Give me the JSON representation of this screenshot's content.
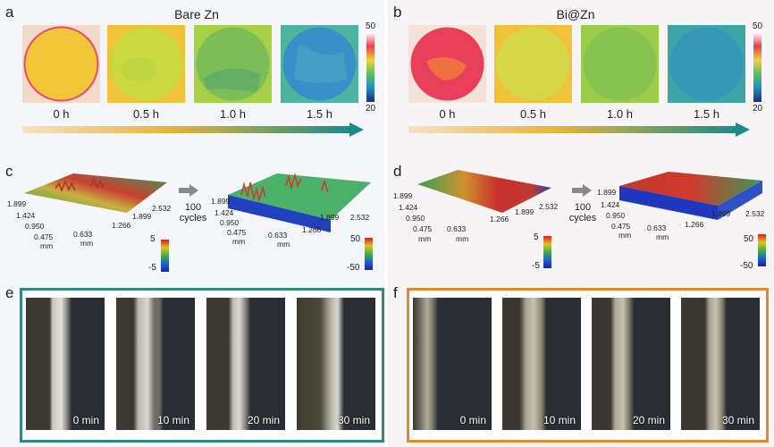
{
  "panels": {
    "a": {
      "label": "a",
      "title": "Bare Zn",
      "times": [
        "0 h",
        "0.5 h",
        "1.0 h",
        "1.5 h"
      ],
      "scale_max": "50",
      "scale_min": "20"
    },
    "b": {
      "label": "b",
      "title": "Bi@Zn",
      "times": [
        "0 h",
        "0.5 h",
        "1.0 h",
        "1.5 h"
      ],
      "scale_max": "50",
      "scale_min": "20"
    },
    "c": {
      "label": "c",
      "cycles_top": "100",
      "cycles_bottom": "cycles",
      "left_axis": [
        "1.899",
        "1.424",
        "0.950",
        "0.475",
        "mm",
        "0.633",
        "mm",
        "1.266",
        "1.899",
        "2.532"
      ],
      "right_axis": [
        "1.899",
        "1.424",
        "0.950",
        "0.475",
        "mm",
        "0.633",
        "mm",
        "1.266",
        "1.899",
        "2.532"
      ],
      "scale1": [
        "5",
        "-5"
      ],
      "scale2": [
        "50",
        "-50"
      ]
    },
    "d": {
      "label": "d",
      "cycles_top": "100",
      "cycles_bottom": "cycles",
      "left_axis": [
        "1.899",
        "1.424",
        "0.950",
        "0.475",
        "mm",
        "0.633",
        "mm",
        "1.266",
        "1.899",
        "2.532"
      ],
      "right_axis": [
        "1.899",
        "1.424",
        "0.950",
        "0.475",
        "mm",
        "0.633",
        "mm",
        "1.266",
        "1.899",
        "2.532"
      ],
      "scale1": [
        "5",
        "-5"
      ],
      "scale2": [
        "50",
        "-50"
      ]
    },
    "e": {
      "label": "e",
      "times": [
        "0 min",
        "10 min",
        "20 min",
        "30 min"
      ],
      "frame_color": "#2e8a7a"
    },
    "f": {
      "label": "f",
      "times": [
        "0 min",
        "10 min",
        "20 min",
        "30 min"
      ],
      "frame_color": "#e08a2c"
    }
  },
  "colors": {
    "gradient_start": "#f7e2c4",
    "gradient_mid": "#e8b33a",
    "gradient_end": "#1a8a8a"
  }
}
